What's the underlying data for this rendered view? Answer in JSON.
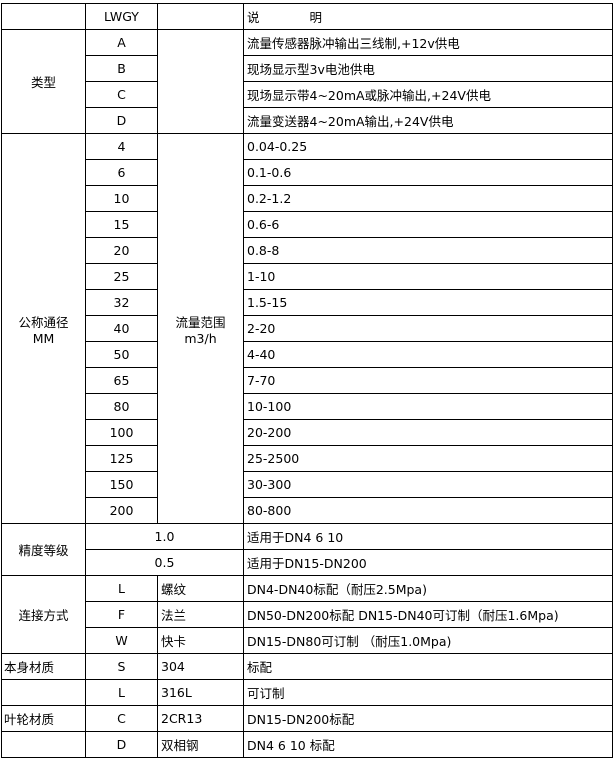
{
  "header": {
    "model": "LWGY",
    "desc": "说　　　　明"
  },
  "type": {
    "label": "类型",
    "rows": [
      {
        "code": "A",
        "desc": "流量传感器脉冲输出三线制,+12v供电"
      },
      {
        "code": "B",
        "desc": "现场显示型3v电池供电"
      },
      {
        "code": "C",
        "desc": "现场显示带4~20mA或脉冲输出,+24V供电"
      },
      {
        "code": "D",
        "desc": "流量变送器4~20mA输出,+24V供电"
      }
    ]
  },
  "diameter": {
    "label": "公称通径",
    "unit_label": "MM",
    "range_label": "流量范围",
    "range_unit": "m3/h",
    "rows": [
      {
        "dn": "4",
        "range": "0.04-0.25"
      },
      {
        "dn": "6",
        "range": "0.1-0.6"
      },
      {
        "dn": "10",
        "range": "0.2-1.2"
      },
      {
        "dn": "15",
        "range": "0.6-6"
      },
      {
        "dn": "20",
        "range": "0.8-8"
      },
      {
        "dn": "25",
        "range": "1-10"
      },
      {
        "dn": "32",
        "range": "1.5-15"
      },
      {
        "dn": "40",
        "range": "2-20"
      },
      {
        "dn": "50",
        "range": "4-40"
      },
      {
        "dn": "65",
        "range": "7-70"
      },
      {
        "dn": "80",
        "range": "10-100"
      },
      {
        "dn": "100",
        "range": "20-200"
      },
      {
        "dn": "125",
        "range": "25-2500"
      },
      {
        "dn": "150",
        "range": "30-300"
      },
      {
        "dn": "200",
        "range": "80-800"
      }
    ]
  },
  "accuracy": {
    "label": "精度等级",
    "rows": [
      {
        "grade": "1.0",
        "desc": "适用于DN4  6  10"
      },
      {
        "grade": "0.5",
        "desc": "适用于DN15-DN200"
      }
    ]
  },
  "connection": {
    "label": "连接方式",
    "rows": [
      {
        "code": "L",
        "name": "螺纹",
        "desc": "DN4-DN40标配（耐压2.5Mpa)"
      },
      {
        "code": "F",
        "name": "法兰",
        "desc": "DN50-DN200标配 DN15-DN40可订制（耐压1.6Mpa)"
      },
      {
        "code": "W",
        "name": "快卡",
        "desc": "DN15-DN80可订制 （耐压1.0Mpa)"
      }
    ]
  },
  "body_material": {
    "label": "本身材质",
    "rows": [
      {
        "code": "S",
        "name": "304",
        "desc": "标配"
      },
      {
        "code": "L",
        "name": "316L",
        "desc": "可订制"
      }
    ]
  },
  "impeller_material": {
    "label": "叶轮材质",
    "rows": [
      {
        "code": "C",
        "name": "2CR13",
        "desc": "DN15-DN200标配"
      },
      {
        "code": "D",
        "name": "双相钢",
        "desc": "DN4 6 10 标配"
      }
    ]
  }
}
